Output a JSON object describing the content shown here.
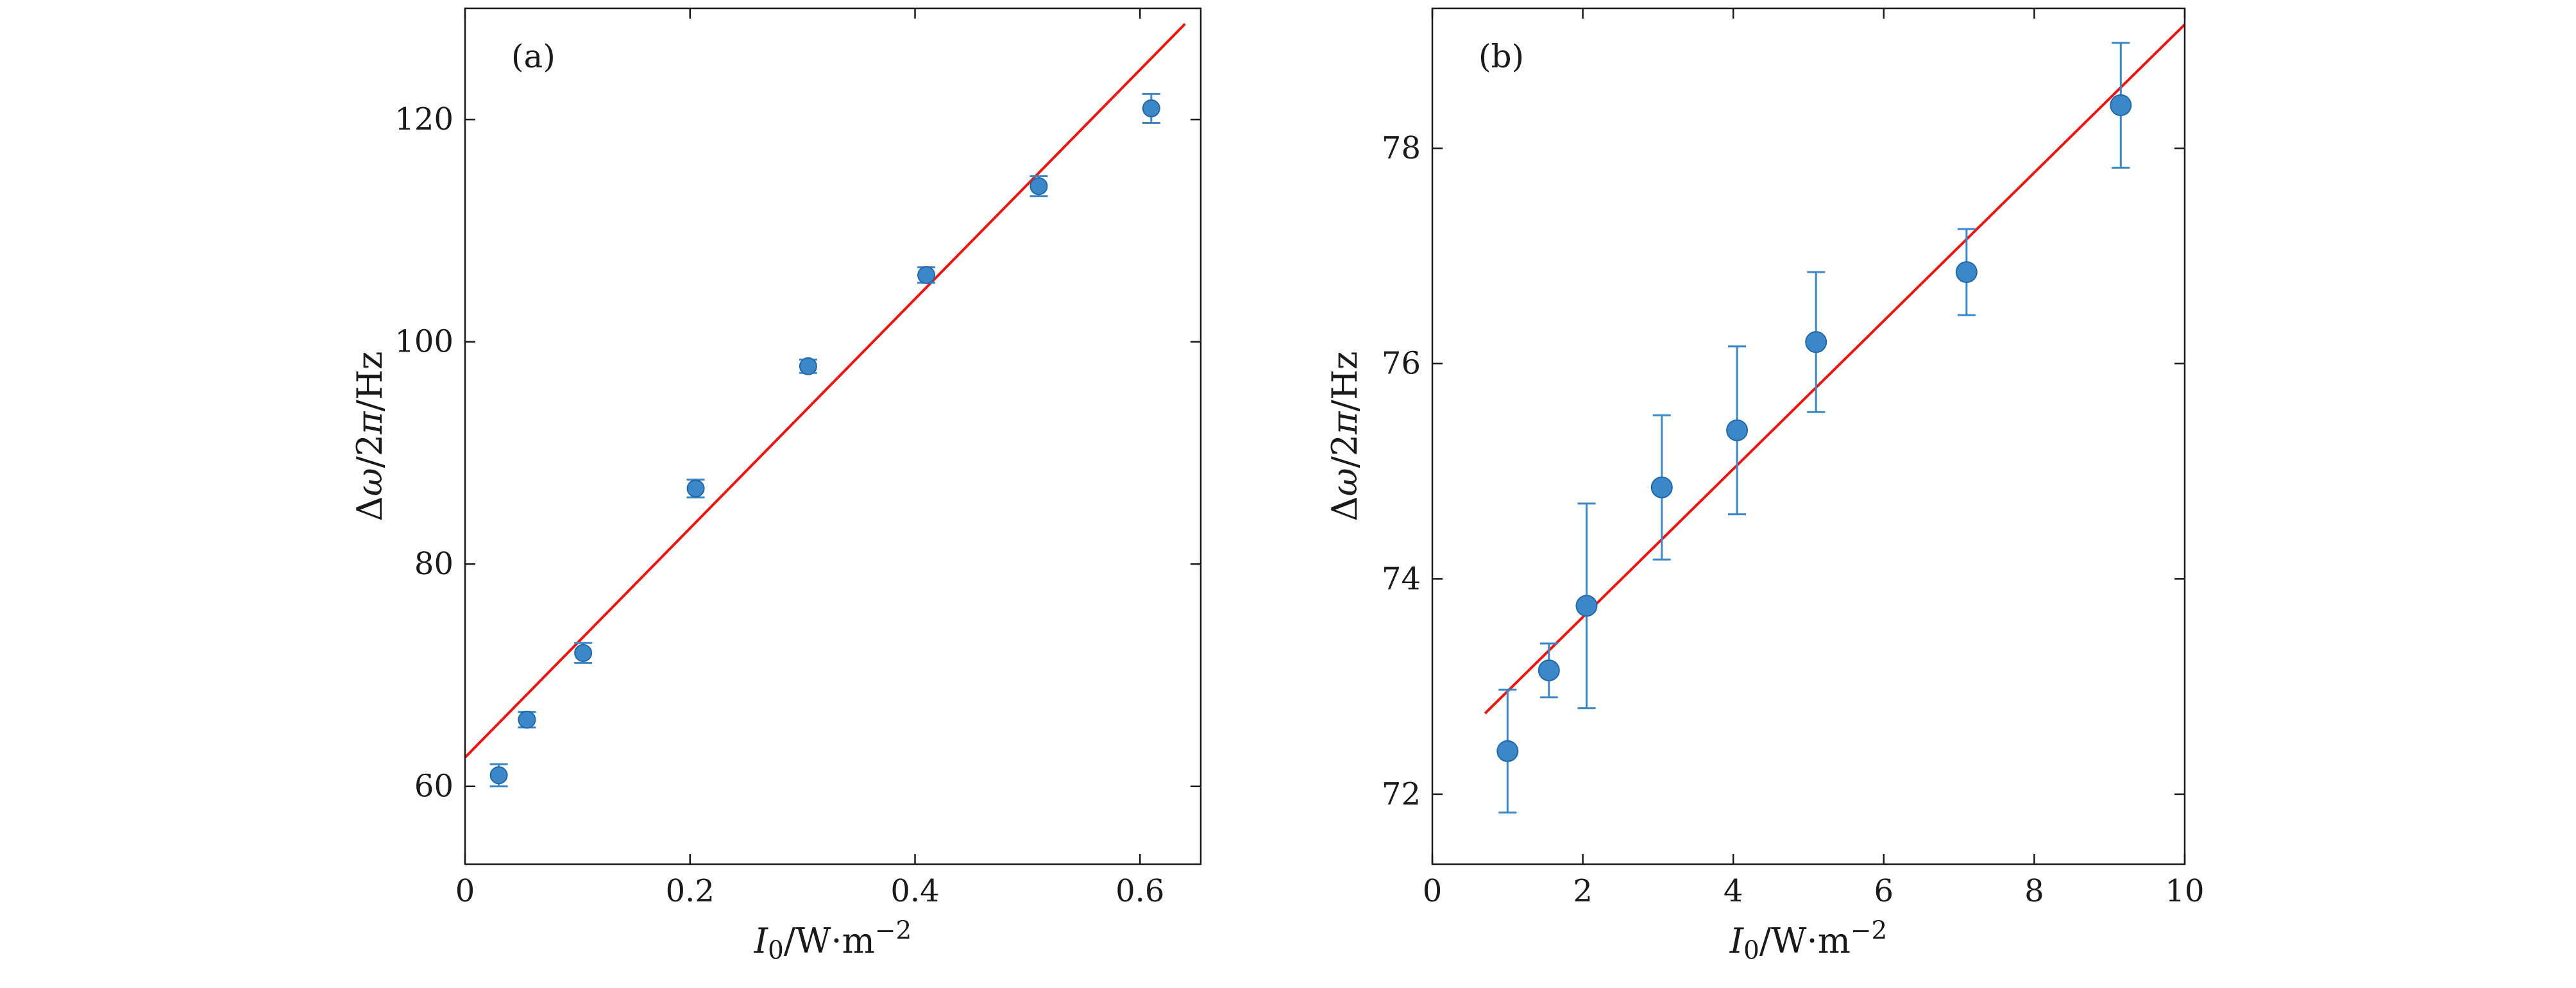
{
  "figure": {
    "background": "#ffffff",
    "colors": {
      "axis": "#1a1a1a",
      "marker_fill": "#3b87c8",
      "marker_edge": "#2268a8",
      "error_bar": "#3b87c8",
      "fit_line": "#ee1511"
    }
  },
  "chart_data": [
    {
      "type": "scatter",
      "panel_label": "(a)",
      "ylabel_parts": [
        {
          "t": "Δ"
        },
        {
          "t": "ω",
          "i": 1
        },
        {
          "t": "/2"
        },
        {
          "t": "π",
          "i": 1
        },
        {
          "t": "/Hz"
        }
      ],
      "xlabel_parts": [
        {
          "t": "I",
          "i": 1
        },
        {
          "t": "0",
          "sub": 1
        },
        {
          "t": "/W·m"
        },
        {
          "t": "−2",
          "sup": 1
        }
      ],
      "xlim": [
        0,
        0.654
      ],
      "ylim": [
        53,
        130
      ],
      "xticks": [
        {
          "v": 0,
          "label": "0"
        },
        {
          "v": 0.2,
          "label": "0.2"
        },
        {
          "v": 0.4,
          "label": "0.4"
        },
        {
          "v": 0.6,
          "label": "0.6"
        }
      ],
      "yticks": [
        {
          "v": 60,
          "label": "60"
        },
        {
          "v": 80,
          "label": "80"
        },
        {
          "v": 100,
          "label": "100"
        },
        {
          "v": 120,
          "label": "120"
        }
      ],
      "points": [
        {
          "x": 0.03,
          "y": 61.0,
          "yerr": 1.0
        },
        {
          "x": 0.055,
          "y": 66.0,
          "yerr": 0.7
        },
        {
          "x": 0.105,
          "y": 72.0,
          "yerr": 0.9
        },
        {
          "x": 0.205,
          "y": 86.8,
          "yerr": 0.8
        },
        {
          "x": 0.305,
          "y": 97.8,
          "yerr": 0.6
        },
        {
          "x": 0.41,
          "y": 106.0,
          "yerr": 0.7
        },
        {
          "x": 0.51,
          "y": 114.0,
          "yerr": 0.9
        },
        {
          "x": 0.61,
          "y": 121.0,
          "yerr": 1.3
        }
      ],
      "fit_line": {
        "x1": 0,
        "y1": 62.6,
        "x2": 0.64,
        "y2": 128.6
      }
    },
    {
      "type": "scatter",
      "panel_label": "(b)",
      "ylabel_parts": [
        {
          "t": "Δ"
        },
        {
          "t": "ω",
          "i": 1
        },
        {
          "t": "/2"
        },
        {
          "t": "π",
          "i": 1
        },
        {
          "t": "/Hz"
        }
      ],
      "xlabel_parts": [
        {
          "t": "I",
          "i": 1
        },
        {
          "t": "0",
          "sub": 1
        },
        {
          "t": "/W·m"
        },
        {
          "t": "−2",
          "sup": 1
        }
      ],
      "xlim": [
        0,
        10
      ],
      "ylim": [
        71.35,
        79.3
      ],
      "xticks": [
        {
          "v": 0,
          "label": "0"
        },
        {
          "v": 2,
          "label": "2"
        },
        {
          "v": 4,
          "label": "4"
        },
        {
          "v": 6,
          "label": "6"
        },
        {
          "v": 8,
          "label": "8"
        },
        {
          "v": 10,
          "label": "10"
        }
      ],
      "yticks": [
        {
          "v": 72,
          "label": "72"
        },
        {
          "v": 74,
          "label": "74"
        },
        {
          "v": 76,
          "label": "76"
        },
        {
          "v": 78,
          "label": "78"
        }
      ],
      "points": [
        {
          "x": 1.0,
          "y": 72.4,
          "yerr": 0.57
        },
        {
          "x": 1.55,
          "y": 73.15,
          "yerr": 0.25
        },
        {
          "x": 2.05,
          "y": 73.75,
          "yerr": 0.95
        },
        {
          "x": 3.05,
          "y": 74.85,
          "yerr": 0.67
        },
        {
          "x": 4.05,
          "y": 75.38,
          "yerr": 0.78
        },
        {
          "x": 5.1,
          "y": 76.2,
          "yerr": 0.65
        },
        {
          "x": 7.1,
          "y": 76.85,
          "yerr": 0.4
        },
        {
          "x": 9.15,
          "y": 78.4,
          "yerr": 0.58
        }
      ],
      "fit_line": {
        "x1": 0.7,
        "y1": 72.75,
        "x2": 10,
        "y2": 79.15
      }
    }
  ]
}
